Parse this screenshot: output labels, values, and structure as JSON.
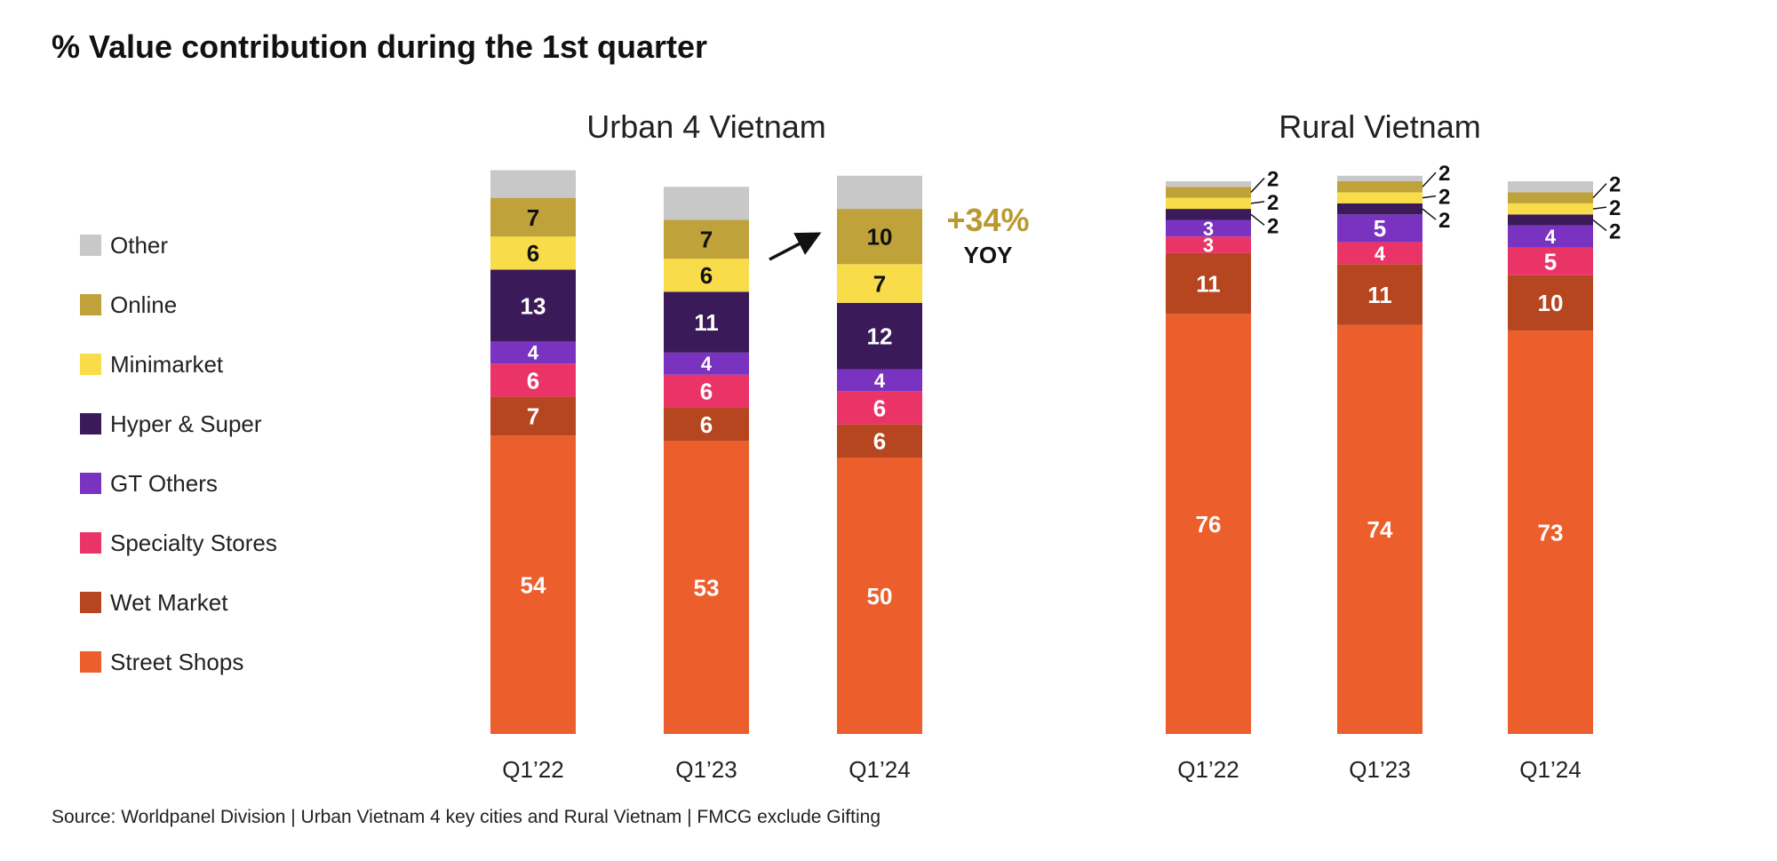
{
  "title": "% Value contribution during the 1st quarter",
  "source": "Source: Worldpanel Division | Urban Vietnam 4 key cities and Rural Vietnam | FMCG exclude Gifting",
  "colors": {
    "Other": "#c8c8c8",
    "Online": "#bfa23a",
    "Minimarket": "#f8dc4a",
    "Hyper & Super": "#3a1a58",
    "GT Others": "#7a33c0",
    "Specialty Stores": "#ea3468",
    "Wet Market": "#b5461f",
    "Street Shops": "#ec5e2c",
    "annotation": "#b89a30"
  },
  "legend": [
    "Other",
    "Online",
    "Minimarket",
    "Hyper & Super",
    "GT Others",
    "Specialty Stores",
    "Wet Market",
    "Street Shops"
  ],
  "annotation": {
    "value": "+34%",
    "label": "YOY",
    "icon": "arrow-up-right-icon"
  },
  "chart_data": [
    {
      "type": "bar",
      "stacked": true,
      "title": "Urban 4 Vietnam",
      "categories": [
        "Q1’22",
        "Q1’23",
        "Q1’24"
      ],
      "series": [
        {
          "name": "Street Shops",
          "values": [
            54,
            53,
            50
          ]
        },
        {
          "name": "Wet Market",
          "values": [
            7,
            6,
            6
          ]
        },
        {
          "name": "Specialty Stores",
          "values": [
            6,
            6,
            6
          ]
        },
        {
          "name": "GT Others",
          "values": [
            4,
            4,
            4
          ]
        },
        {
          "name": "Hyper & Super",
          "values": [
            13,
            11,
            12
          ]
        },
        {
          "name": "Minimarket",
          "values": [
            6,
            6,
            7
          ]
        },
        {
          "name": "Online",
          "values": [
            7,
            7,
            10
          ]
        },
        {
          "name": "Other",
          "values": [
            5,
            6,
            6
          ]
        }
      ],
      "ylim": [
        0,
        100
      ],
      "legend_position": "left"
    },
    {
      "type": "bar",
      "stacked": true,
      "title": "Rural Vietnam",
      "categories": [
        "Q1’22",
        "Q1’23",
        "Q1’24"
      ],
      "series": [
        {
          "name": "Street Shops",
          "values": [
            76,
            74,
            73
          ]
        },
        {
          "name": "Wet Market",
          "values": [
            11,
            11,
            10
          ]
        },
        {
          "name": "Specialty Stores",
          "values": [
            3,
            4,
            5
          ]
        },
        {
          "name": "GT Others",
          "values": [
            3,
            5,
            4
          ]
        },
        {
          "name": "Hyper & Super",
          "values": [
            2,
            2,
            2
          ]
        },
        {
          "name": "Minimarket",
          "values": [
            2,
            2,
            2
          ]
        },
        {
          "name": "Online",
          "values": [
            2,
            2,
            2
          ]
        },
        {
          "name": "Other",
          "values": [
            1,
            1,
            2
          ]
        }
      ],
      "ylim": [
        0,
        100
      ],
      "legend_position": "left"
    }
  ]
}
